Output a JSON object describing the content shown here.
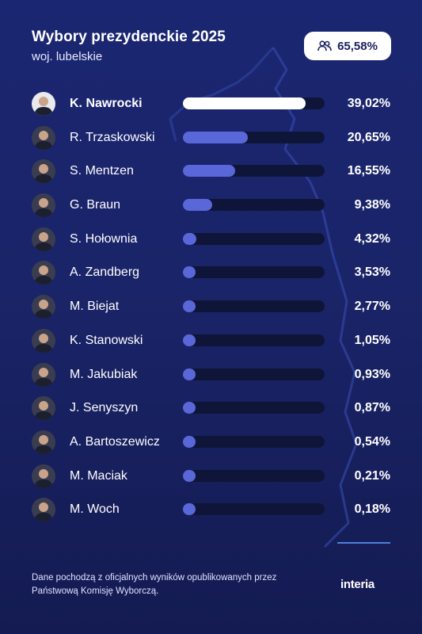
{
  "header": {
    "title": "Wybory prezydenckie 2025",
    "subtitle": "woj. lubelskie",
    "turnout_label": "65,58%",
    "turnout_icon": "people-icon"
  },
  "colors": {
    "background": "#1b2672",
    "bar_leader": "#ffffff",
    "bar_default": "#5a67d8",
    "track": "#0f1538",
    "accent_line": "#4c82d8"
  },
  "chart_data": {
    "type": "bar",
    "orientation": "horizontal",
    "title": "Wybory prezydenckie 2025",
    "subtitle": "woj. lubelskie",
    "unit": "%",
    "xlim": [
      0,
      45
    ],
    "categories": [
      "K. Nawrocki",
      "R. Trzaskowski",
      "S. Mentzen",
      "G. Braun",
      "S. Hołownia",
      "A. Zandberg",
      "M. Biejat",
      "K. Stanowski",
      "M. Jakubiak",
      "J. Senyszyn",
      "A. Bartoszewicz",
      "M. Maciak",
      "M. Woch"
    ],
    "values": [
      39.02,
      20.65,
      16.55,
      9.38,
      4.32,
      3.53,
      2.77,
      1.05,
      0.93,
      0.87,
      0.54,
      0.21,
      0.18
    ],
    "labels": [
      "39,02%",
      "20,65%",
      "16,55%",
      "9,38%",
      "4,32%",
      "3,53%",
      "2,77%",
      "1,05%",
      "0,93%",
      "0,87%",
      "0,54%",
      "0,21%",
      "0,18%"
    ]
  },
  "footer": {
    "source_text": "Dane pochodzą z oficjalnych wyników opublikowanych przez Państwową Komisję Wyborczą.",
    "logo_text": "interia"
  }
}
